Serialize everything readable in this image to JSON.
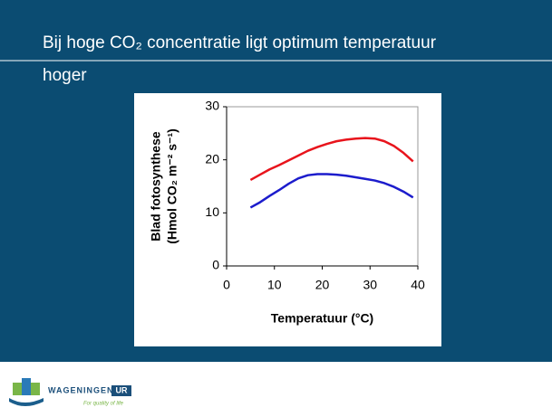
{
  "slide": {
    "title_line1": "Bij hoge CO₂ concentratie ligt optimum temperatuur",
    "title_line2": "hoger"
  },
  "footer": {
    "brand": "WAGENINGEN",
    "brand_mark": "UR",
    "tagline": "For quality of life"
  },
  "chart_data": {
    "type": "line",
    "x": [
      5,
      7,
      9,
      11,
      13,
      15,
      17,
      19,
      21,
      23,
      25,
      27,
      29,
      31,
      33,
      35,
      37,
      39
    ],
    "series": [
      {
        "color": "#e8141c",
        "values": [
          16.2,
          17.2,
          18.2,
          19,
          19.9,
          20.8,
          21.7,
          22.4,
          23,
          23.5,
          23.8,
          24,
          24.1,
          24,
          23.5,
          22.6,
          21.3,
          19.7
        ]
      },
      {
        "color": "#1c1ccc",
        "values": [
          11,
          12,
          13.2,
          14.3,
          15.5,
          16.5,
          17.1,
          17.3,
          17.3,
          17.2,
          17,
          16.7,
          16.4,
          16.1,
          15.6,
          14.9,
          14,
          12.9
        ]
      }
    ],
    "xlabel": "Temperatuur (°C)",
    "ylabel": [
      "Blad fotosynthese",
      "(Hmol CO₂ m⁻² s⁻¹)"
    ],
    "xlim": [
      0,
      40
    ],
    "xticks": [
      0,
      10,
      20,
      30,
      40
    ],
    "ylim": [
      0,
      30
    ],
    "yticks": [
      0,
      10,
      20,
      30
    ]
  }
}
